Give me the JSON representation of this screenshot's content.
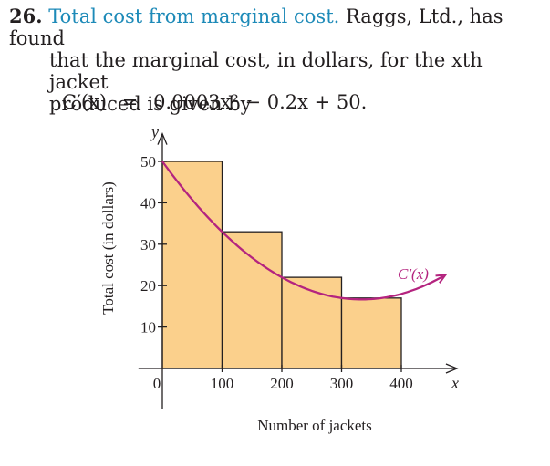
{
  "problem": {
    "number": "26.",
    "title": "Total cost from marginal cost.",
    "text_line1": "Raggs, Ltd., has found",
    "text_line2": "that the marginal cost, in dollars, for the xth jacket",
    "text_line3": "produced is given by"
  },
  "formula": {
    "lhs": "C′(x)",
    "eq": "=",
    "rhs": "0.0003x² − 0.2x + 50."
  },
  "colors": {
    "title": "#1d8ab8",
    "bar_fill": "#fbd08c",
    "curve": "#b4247f",
    "axis": "#231f20"
  },
  "chart_data": {
    "type": "bar",
    "categories": [
      "0-100",
      "100-200",
      "200-300",
      "300-400"
    ],
    "x_edges": [
      0,
      100,
      200,
      300,
      400
    ],
    "values": [
      50,
      33,
      22,
      17
    ],
    "curve": {
      "label": "C′(x)",
      "formula": "0.0003x^2 - 0.2x + 50",
      "coeffs": [
        0.0003,
        -0.2,
        50
      ],
      "x_range": [
        0,
        470
      ]
    },
    "xlabel": "Number of jackets",
    "ylabel": "Total cost (in dollars)",
    "x_axis_var": "x",
    "y_axis_var": "y",
    "x_ticks": [
      0,
      100,
      200,
      300,
      400
    ],
    "x_tick_labels": [
      "0",
      "100",
      "200",
      "300",
      "400"
    ],
    "y_ticks": [
      10,
      20,
      30,
      40,
      50
    ],
    "y_tick_labels": [
      "10",
      "20",
      "30",
      "40",
      "50"
    ],
    "xlim": [
      -40,
      490
    ],
    "ylim": [
      -8,
      58
    ],
    "grid": false,
    "legend": "none"
  }
}
